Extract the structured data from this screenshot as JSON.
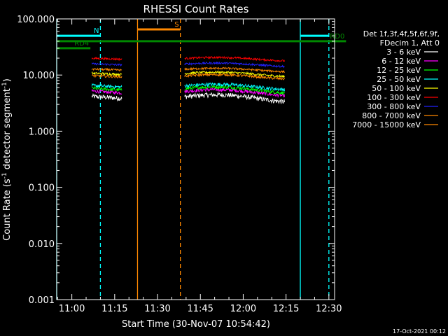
{
  "chart_data": {
    "type": "line",
    "title": "RHESSI Count Rates",
    "xlabel": "Start Time (30-Nov-07 10:54:42)",
    "ylabel_parts": [
      "Count Rate (s",
      "-1",
      " detector segment",
      "-1",
      ")"
    ],
    "y_scale": "log",
    "ylim": [
      0.001,
      100
    ],
    "xlim": [
      "10:54:42",
      "12:32:00"
    ],
    "grid": false,
    "legend_position": "right",
    "y_ticks": [
      {
        "v": 100,
        "label": "100.000"
      },
      {
        "v": 10,
        "label": "10.000"
      },
      {
        "v": 1,
        "label": "1.000"
      },
      {
        "v": 0.1,
        "label": "0.100"
      },
      {
        "v": 0.01,
        "label": "0.010"
      },
      {
        "v": 0.001,
        "label": "0.001"
      }
    ],
    "x_ticks": [
      {
        "min": 660,
        "label": "11:00"
      },
      {
        "min": 675,
        "label": "11:15"
      },
      {
        "min": 690,
        "label": "11:30"
      },
      {
        "min": 705,
        "label": "11:45"
      },
      {
        "min": 720,
        "label": "12:00"
      },
      {
        "min": 735,
        "label": "12:15"
      },
      {
        "min": 750,
        "label": "12:30"
      }
    ],
    "legend_header": [
      "Det 1f,3f,4f,5f,6f,9f,",
      "FDecim 1, Att 0"
    ],
    "segments": [
      {
        "t0": 667.0,
        "t1": 677.5
      },
      {
        "t0": 699.5,
        "t1": 734.5
      }
    ],
    "series": [
      {
        "name": "3 - 6 keV",
        "color": "#ffffff",
        "level": 4.0,
        "noise": 0.1,
        "bump": 0.08
      },
      {
        "name": "6 - 12 keV",
        "color": "#ff00ff",
        "level": 5.0,
        "noise": 0.07,
        "bump": 0.07
      },
      {
        "name": "12 - 25 keV",
        "color": "#00ff00",
        "level": 5.6,
        "noise": 0.07,
        "bump": 0.07
      },
      {
        "name": "25 - 50 keV",
        "color": "#00ffff",
        "level": 6.3,
        "noise": 0.07,
        "bump": 0.06
      },
      {
        "name": "50 - 100 keV",
        "color": "#ffff00",
        "level": 10.5,
        "noise": 0.05,
        "bump": 0.05
      },
      {
        "name": "100 - 300 keV",
        "color": "#ff0000",
        "level": 19.5,
        "noise": 0.04,
        "bump": 0.04
      },
      {
        "name": "300 - 800 keV",
        "color": "#2222ff",
        "level": 15.5,
        "noise": 0.04,
        "bump": 0.04
      },
      {
        "name": "800 - 7000 keV",
        "color": "#ff8800",
        "level": 9.5,
        "noise": 0.05,
        "bump": 0.05
      },
      {
        "name": "7000 - 15000 keV",
        "color": "#ff8800",
        "level": 12.5,
        "noise": 0.04,
        "bump": 0.04
      }
    ],
    "flags": [
      {
        "label": "N",
        "color": "#00ffff",
        "value": 50,
        "t0": 654.7,
        "t1": 670.0
      },
      {
        "label": "",
        "color": "#00ffff",
        "value": 50,
        "t0": 740.0,
        "t1": 750.0
      },
      {
        "label": "S",
        "color": "#ff8800",
        "value": 65,
        "t0": 683.0,
        "t1": 698.0
      },
      {
        "label": "RD0",
        "color": "#008800",
        "value": 40,
        "t0": 654.7,
        "t1": 756.0
      },
      {
        "label": "RD4",
        "color": "#008800",
        "value": 30,
        "t0": 654.7,
        "t1": 666.5
      }
    ],
    "vlines": [
      {
        "t": 670.0,
        "color": "#00ffff",
        "style": "dashed"
      },
      {
        "t": 740.0,
        "color": "#00ffff",
        "style": "solid"
      },
      {
        "t": 750.0,
        "color": "#00ffff",
        "style": "dashed"
      },
      {
        "t": 683.0,
        "color": "#ff8800",
        "style": "solid"
      },
      {
        "t": 698.0,
        "color": "#ff8800",
        "style": "dashed"
      },
      {
        "t": 654.7,
        "color": "#00ffff",
        "style": "solid"
      }
    ]
  },
  "footer": {
    "timestamp": "17-Oct-2021 00:12"
  }
}
